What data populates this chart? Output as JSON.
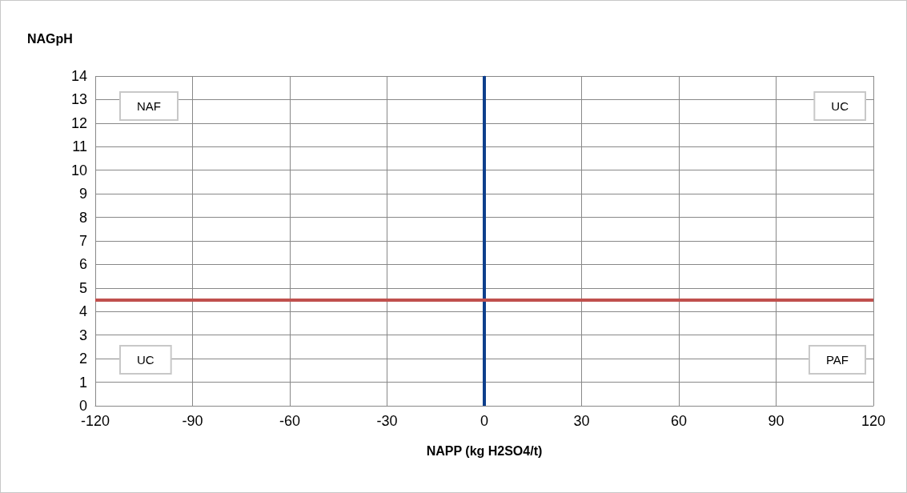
{
  "chart_data": {
    "type": "scatter",
    "ylabel": "NAGpH",
    "xlabel": "NAPP (kg H2SO4/t)",
    "xlim": [
      -120,
      120
    ],
    "xticks": [
      -120,
      -90,
      -60,
      -30,
      0,
      30,
      60,
      90,
      120
    ],
    "ylim": [
      0,
      14
    ],
    "yticks": [
      0,
      1,
      2,
      3,
      4,
      5,
      6,
      7,
      8,
      9,
      10,
      11,
      12,
      13,
      14
    ],
    "grid": true,
    "ref_lines": [
      {
        "axis": "x",
        "value": 0,
        "color": "#0e3f8c"
      },
      {
        "axis": "y",
        "value": 4.5,
        "color": "#c0504d"
      }
    ],
    "annotations": [
      "NAF",
      "UC",
      "UC",
      "PAF"
    ]
  }
}
